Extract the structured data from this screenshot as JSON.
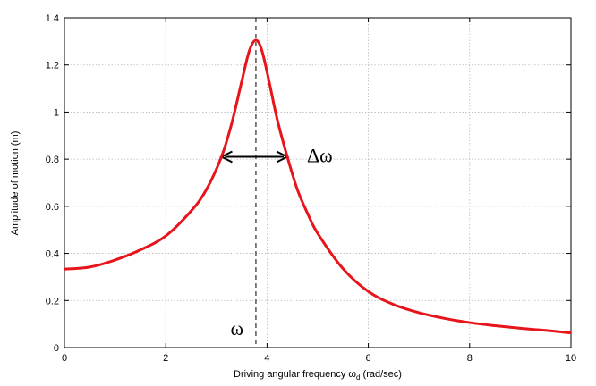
{
  "chart_data": {
    "type": "line",
    "title": "",
    "xlabel_main": "Driving angular frequency ω",
    "xlabel_sub": "d",
    "xlabel_tail": " (rad/sec)",
    "ylabel": "Amplitude of motion (m)",
    "xlim": [
      0,
      10
    ],
    "ylim": [
      0,
      1.4
    ],
    "xticks": [
      0,
      2,
      4,
      6,
      8,
      10
    ],
    "yticks": [
      0,
      0.2,
      0.4,
      0.6,
      0.8,
      1,
      1.2,
      1.4
    ],
    "xtick_labels": [
      "0",
      "2",
      "4",
      "6",
      "8",
      "10"
    ],
    "ytick_labels": [
      "0",
      "0.2",
      "0.4",
      "0.6",
      "0.8",
      "1",
      "1.2",
      "1.4"
    ],
    "grid": true,
    "series": [
      {
        "color": "#e8141c",
        "x": [
          0,
          0.5,
          1,
          1.5,
          2,
          2.5,
          2.8,
          3.1,
          3.3,
          3.5,
          3.65,
          3.78,
          3.9,
          4.05,
          4.2,
          4.4,
          4.6,
          4.8,
          5,
          5.5,
          6,
          6.5,
          7,
          7.5,
          8,
          8.5,
          9,
          9.5,
          10
        ],
        "y": [
          0.333,
          0.342,
          0.372,
          0.415,
          0.474,
          0.58,
          0.67,
          0.81,
          0.95,
          1.13,
          1.26,
          1.305,
          1.26,
          1.12,
          0.97,
          0.81,
          0.67,
          0.57,
          0.485,
          0.335,
          0.238,
          0.183,
          0.148,
          0.124,
          0.106,
          0.093,
          0.082,
          0.073,
          0.062
        ]
      }
    ],
    "annotations": {
      "resonance_line_x": 3.78,
      "resonance_label": "ω",
      "width_arrow": {
        "x_from": 3.1,
        "x_to": 4.4,
        "y": 0.81
      },
      "width_label": "Δω"
    },
    "colors": {
      "curve": "#e8141c",
      "grid": "#b8b8b8",
      "axes": "#000000"
    }
  }
}
